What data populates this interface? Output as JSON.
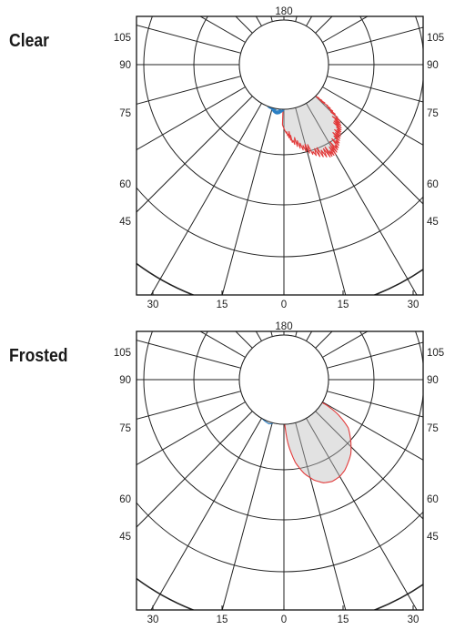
{
  "chart_data": [
    {
      "type": "polar",
      "label": "Clear",
      "top_label": "180",
      "left_angle_labels": [
        "105",
        "90",
        "75",
        "60",
        "45"
      ],
      "right_angle_labels": [
        "105",
        "90",
        "75",
        "60",
        "45"
      ],
      "bottom_labels": [
        "30",
        "15",
        "0",
        "15",
        "30"
      ],
      "series": [
        {
          "color": "#e23a3a",
          "shape": "spiky",
          "points": [
            [
              -2,
              0.46
            ],
            [
              0,
              0.5
            ],
            [
              4,
              0.58
            ],
            [
              8,
              0.66
            ],
            [
              14,
              0.74
            ],
            [
              20,
              0.82
            ],
            [
              26,
              0.9
            ],
            [
              32,
              0.96
            ],
            [
              36,
              0.97
            ],
            [
              40,
              0.93
            ],
            [
              44,
              0.88
            ],
            [
              48,
              0.84
            ],
            [
              52,
              0.8
            ],
            [
              56,
              0.74
            ],
            [
              60,
              0.62
            ],
            [
              64,
              0.5
            ],
            [
              68,
              0.38
            ],
            [
              72,
              0.28
            ],
            [
              78,
              0.18
            ],
            [
              86,
              0.08
            ],
            [
              95,
              0
            ]
          ]
        },
        {
          "color": "#2a7fc4",
          "shape": "spiky",
          "points": [
            [
              0,
              0.3
            ],
            [
              -4,
              0.32
            ],
            [
              -8,
              0.34
            ],
            [
              -12,
              0.35
            ],
            [
              -16,
              0.35
            ],
            [
              -20,
              0.34
            ],
            [
              -26,
              0.32
            ],
            [
              -32,
              0.32
            ],
            [
              -38,
              0.31
            ],
            [
              -44,
              0.3
            ],
            [
              -50,
              0.3
            ],
            [
              -56,
              0.3
            ],
            [
              -62,
              0.29
            ],
            [
              -68,
              0.27
            ],
            [
              -74,
              0.22
            ],
            [
              -80,
              0.17
            ],
            [
              -86,
              0.11
            ],
            [
              -92,
              0.05
            ],
            [
              -95,
              0
            ]
          ]
        }
      ]
    },
    {
      "type": "polar",
      "label": "Frosted",
      "top_label": "180",
      "left_angle_labels": [
        "105",
        "90",
        "75",
        "60",
        "45"
      ],
      "right_angle_labels": [
        "105",
        "90",
        "75",
        "60",
        "45"
      ],
      "bottom_labels": [
        "30",
        "15",
        "0",
        "15",
        "30"
      ],
      "series": [
        {
          "color": "#e23a3a",
          "shape": "smooth",
          "points": [
            [
              0,
              0.1
            ],
            [
              2,
              0.3
            ],
            [
              5,
              0.5
            ],
            [
              10,
              0.72
            ],
            [
              15,
              0.86
            ],
            [
              20,
              0.96
            ],
            [
              25,
              1.03
            ],
            [
              30,
              1.06
            ],
            [
              35,
              1.06
            ],
            [
              40,
              1.04
            ],
            [
              45,
              1.0
            ],
            [
              50,
              0.96
            ],
            [
              55,
              0.9
            ],
            [
              60,
              0.84
            ],
            [
              65,
              0.78
            ],
            [
              70,
              0.68
            ],
            [
              75,
              0.58
            ],
            [
              80,
              0.48
            ],
            [
              85,
              0.38
            ],
            [
              90,
              0.26
            ],
            [
              95,
              0.14
            ],
            [
              100,
              0.02
            ]
          ]
        },
        {
          "color": "#2a7fc4",
          "shape": "smooth",
          "points": [
            [
              0,
              0.15
            ],
            [
              -5,
              0.16
            ],
            [
              -10,
              0.2
            ],
            [
              -15,
              0.24
            ],
            [
              -20,
              0.28
            ],
            [
              -25,
              0.31
            ],
            [
              -30,
              0.33
            ],
            [
              -35,
              0.33
            ],
            [
              -40,
              0.33
            ],
            [
              -45,
              0.33
            ],
            [
              -50,
              0.33
            ],
            [
              -55,
              0.33
            ],
            [
              -60,
              0.33
            ],
            [
              -65,
              0.31
            ],
            [
              -70,
              0.28
            ],
            [
              -75,
              0.23
            ],
            [
              -80,
              0.18
            ],
            [
              -85,
              0.13
            ],
            [
              -90,
              0.08
            ],
            [
              -95,
              0.04
            ],
            [
              -100,
              0.01
            ]
          ]
        }
      ]
    }
  ]
}
